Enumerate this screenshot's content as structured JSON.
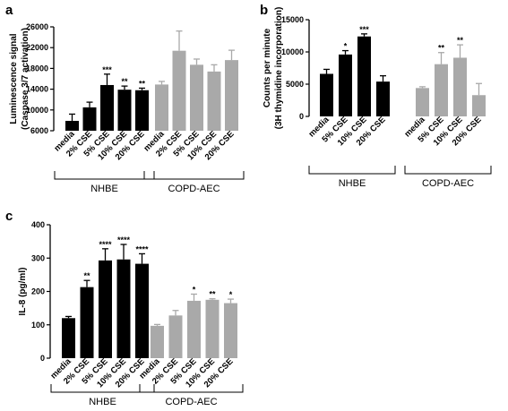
{
  "colors": {
    "black_series": "#000000",
    "gray_series": "#a9a9a9",
    "axis": "#000000"
  },
  "chart_data": [
    {
      "type": "bar",
      "panel": "a",
      "ylabel_lines": [
        "Luminescence signal",
        "(Caspase 3/7 activation)"
      ],
      "ylim": [
        6000,
        26000
      ],
      "yticks": [
        6000,
        10000,
        14000,
        18000,
        22000,
        26000
      ],
      "ytick_labels": [
        "6000",
        "10000",
        "14000",
        "18000",
        "22000",
        "26000"
      ],
      "groups": [
        {
          "label": "NHBE",
          "color": "#000000",
          "bars": [
            {
              "category": "media",
              "value": 7900,
              "error": 1300,
              "sig": ""
            },
            {
              "category": "2% CSE",
              "value": 10500,
              "error": 1000,
              "sig": ""
            },
            {
              "category": "5% CSE",
              "value": 14800,
              "error": 2100,
              "sig": "***"
            },
            {
              "category": "10% CSE",
              "value": 13900,
              "error": 700,
              "sig": "**"
            },
            {
              "category": "20% CSE",
              "value": 13800,
              "error": 400,
              "sig": "**"
            }
          ]
        },
        {
          "label": "COPD-AEC",
          "color": "#a9a9a9",
          "bars": [
            {
              "category": "media",
              "value": 14900,
              "error": 600,
              "sig": ""
            },
            {
              "category": "2% CSE",
              "value": 21400,
              "error": 3800,
              "sig": ""
            },
            {
              "category": "5% CSE",
              "value": 18700,
              "error": 1100,
              "sig": ""
            },
            {
              "category": "10% CSE",
              "value": 17400,
              "error": 1300,
              "sig": ""
            },
            {
              "category": "20% CSE",
              "value": 19600,
              "error": 1900,
              "sig": ""
            }
          ]
        }
      ]
    },
    {
      "type": "bar",
      "panel": "b",
      "ylabel_lines": [
        "Counts per minute",
        "(3H thymidine incorporation)"
      ],
      "ylim": [
        0,
        15000
      ],
      "yticks": [
        0,
        5000,
        10000,
        15000
      ],
      "ytick_labels": [
        "0",
        "5000",
        "10000",
        "15000"
      ],
      "groups": [
        {
          "label": "NHBE",
          "color": "#000000",
          "bars": [
            {
              "category": "media",
              "value": 6600,
              "error": 700,
              "sig": ""
            },
            {
              "category": "5% CSE",
              "value": 9600,
              "error": 600,
              "sig": "*"
            },
            {
              "category": "10% CSE",
              "value": 12400,
              "error": 400,
              "sig": "***"
            },
            {
              "category": "20% CSE",
              "value": 5400,
              "error": 900,
              "sig": ""
            }
          ]
        },
        {
          "label": "COPD-AEC",
          "color": "#a9a9a9",
          "bars": [
            {
              "category": "media",
              "value": 4400,
              "error": 200,
              "sig": ""
            },
            {
              "category": "5% CSE",
              "value": 8100,
              "error": 1800,
              "sig": "**"
            },
            {
              "category": "10% CSE",
              "value": 9100,
              "error": 2000,
              "sig": "**"
            },
            {
              "category": "20% CSE",
              "value": 3300,
              "error": 1800,
              "sig": ""
            }
          ]
        }
      ]
    },
    {
      "type": "bar",
      "panel": "c",
      "ylabel_lines": [
        "IL-8 (pg/ml)"
      ],
      "ylim": [
        0,
        400
      ],
      "yticks": [
        0,
        100,
        200,
        300,
        400
      ],
      "ytick_labels": [
        "0",
        "100",
        "200",
        "300",
        "400"
      ],
      "groups": [
        {
          "label": "NHBE",
          "color": "#000000",
          "bars": [
            {
              "category": "media",
              "value": 120,
              "error": 5,
              "sig": ""
            },
            {
              "category": "2% CSE",
              "value": 213,
              "error": 20,
              "sig": "**"
            },
            {
              "category": "5% CSE",
              "value": 293,
              "error": 35,
              "sig": "****"
            },
            {
              "category": "10% CSE",
              "value": 296,
              "error": 45,
              "sig": "****"
            },
            {
              "category": "20% CSE",
              "value": 283,
              "error": 30,
              "sig": "****"
            }
          ]
        },
        {
          "label": "COPD-AEC",
          "color": "#a9a9a9",
          "bars": [
            {
              "category": "media",
              "value": 97,
              "error": 4,
              "sig": ""
            },
            {
              "category": "2% CSE",
              "value": 128,
              "error": 15,
              "sig": ""
            },
            {
              "category": "5% CSE",
              "value": 172,
              "error": 20,
              "sig": "*"
            },
            {
              "category": "10% CSE",
              "value": 175,
              "error": 3,
              "sig": "**"
            },
            {
              "category": "20% CSE",
              "value": 165,
              "error": 12,
              "sig": "*"
            }
          ]
        }
      ]
    }
  ]
}
